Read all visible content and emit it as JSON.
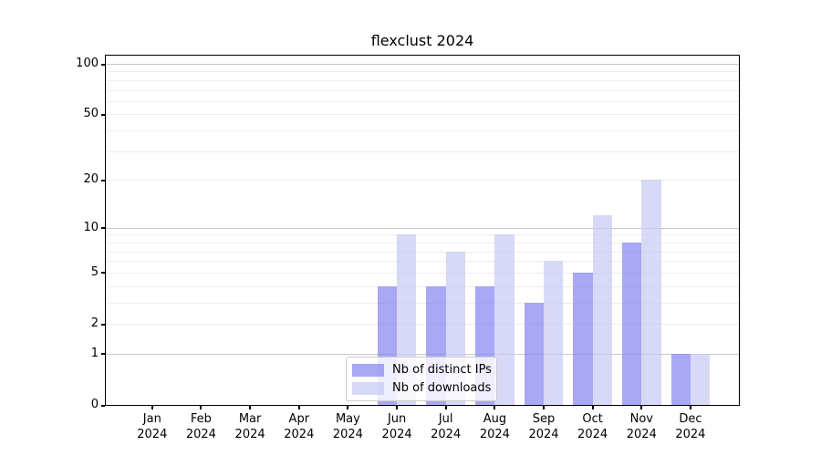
{
  "chart_data": {
    "type": "bar",
    "title": "flexclust 2024",
    "categories": [
      "Jan 2024",
      "Feb 2024",
      "Mar 2024",
      "Apr 2024",
      "May 2024",
      "Jun 2024",
      "Jul 2024",
      "Aug 2024",
      "Sep 2024",
      "Oct 2024",
      "Nov 2024",
      "Dec 2024"
    ],
    "series": [
      {
        "name": "Nb of distinct IPs",
        "color": "rgba(136,136,240,0.73)",
        "values": [
          0,
          0,
          0,
          0,
          0,
          4,
          4,
          4,
          3,
          5,
          8,
          1
        ]
      },
      {
        "name": "Nb of downloads",
        "color": "rgba(200,200,244,0.70)",
        "values": [
          0,
          0,
          0,
          0,
          0,
          9,
          7,
          9,
          6,
          12,
          20,
          1
        ]
      }
    ],
    "yscale": "log10(value+1)",
    "ylim": [
      0,
      113
    ],
    "yticks": [
      0,
      1,
      2,
      5,
      10,
      20,
      50,
      100
    ],
    "grid": {
      "minor_values": [
        2,
        3,
        4,
        5,
        6,
        7,
        8,
        9,
        20,
        30,
        40,
        50,
        60,
        70,
        80,
        90
      ],
      "major_values": [
        1,
        10,
        100
      ],
      "minor_color": "#ededed",
      "major_color": "#c9c9c9"
    },
    "legend": {
      "position": "lower center"
    },
    "xlabel": "",
    "ylabel": ""
  }
}
